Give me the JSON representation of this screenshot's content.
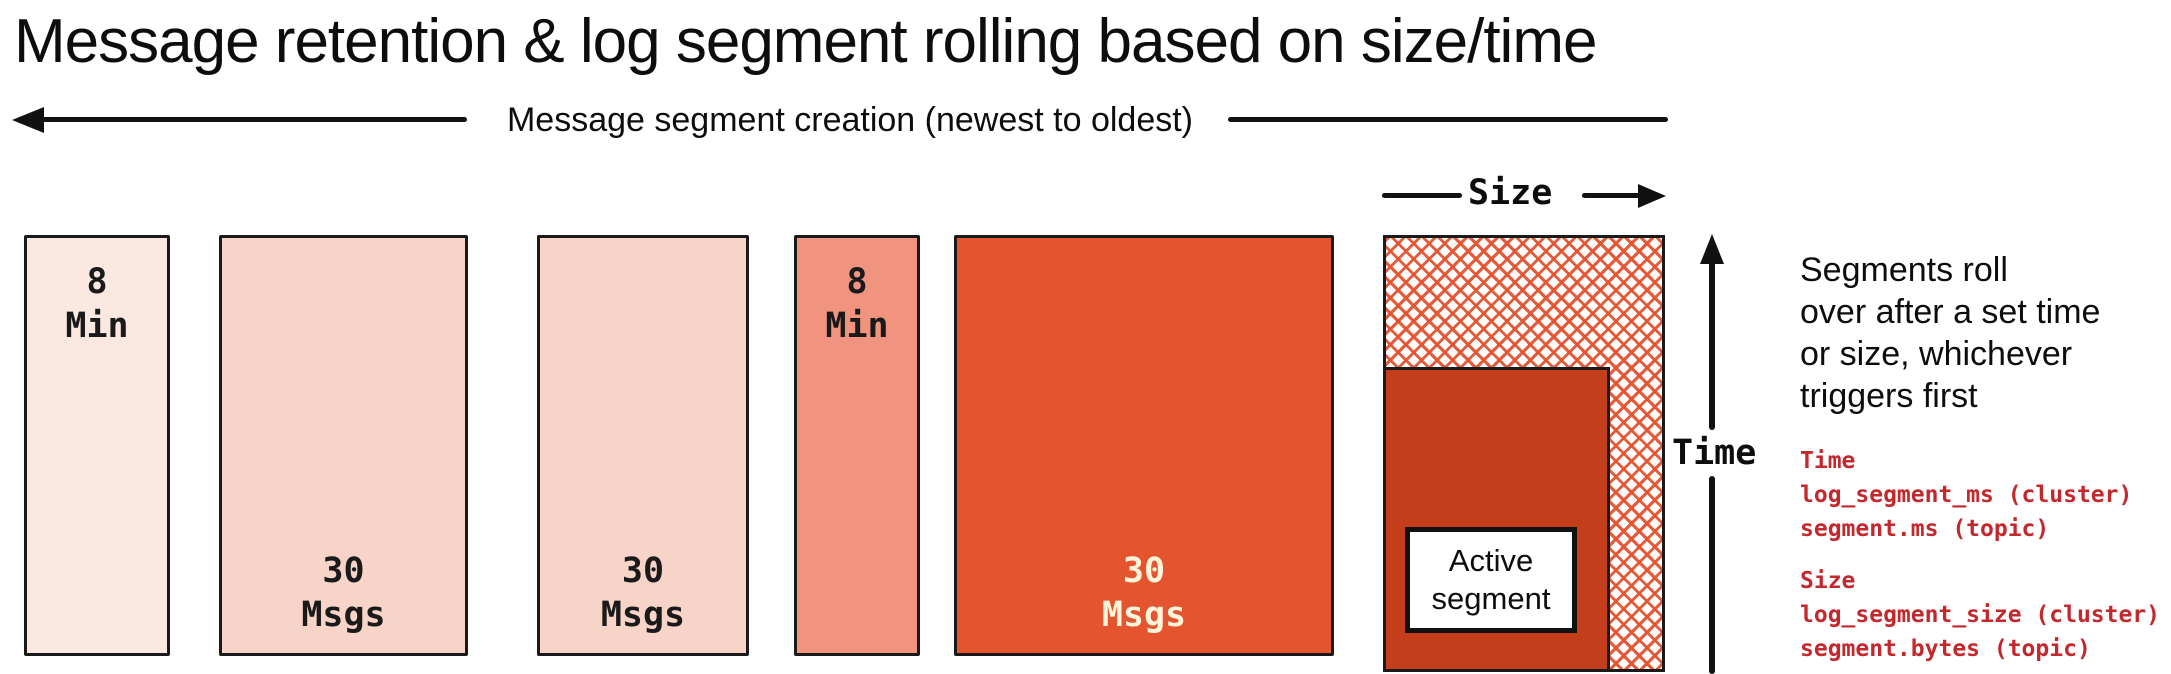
{
  "title": "Message retention & log segment rolling based on size/time",
  "creation_axis": {
    "label": "Message segment creation (newest to oldest)"
  },
  "segments": [
    {
      "label": "8\nMin",
      "fill": "#fbe9e1",
      "text_color": "#1a1a1a",
      "label_position": "top"
    },
    {
      "label": "30\nMsgs",
      "fill": "#f8d3c8",
      "text_color": "#1a1a1a",
      "label_position": "bottom"
    },
    {
      "label": "30\nMsgs",
      "fill": "#f8d3c8",
      "text_color": "#1a1a1a",
      "label_position": "bottom"
    },
    {
      "label": "8\nMin",
      "fill": "#f0947f",
      "text_color": "#1a1a1a",
      "label_position": "top"
    },
    {
      "label": "30\nMsgs",
      "fill": "#e4542f",
      "text_color": "#fdf4da",
      "label_position": "bottom"
    }
  ],
  "axes": {
    "size_label": "Size",
    "time_label": "Time"
  },
  "active_segment": {
    "label": "Active\nsegment",
    "fill": "#c53e1c",
    "hatch_color": "#e4532f"
  },
  "note": {
    "text": "Segments roll\nover after a set time\nor size, whichever\ntriggers first"
  },
  "config": {
    "color": "#c3282d",
    "time_block": "Time\nlog_segment_ms (cluster)\nsegment.ms (topic)",
    "size_block": "Size\nlog_segment_size (cluster)\nsegment.bytes (topic)"
  }
}
